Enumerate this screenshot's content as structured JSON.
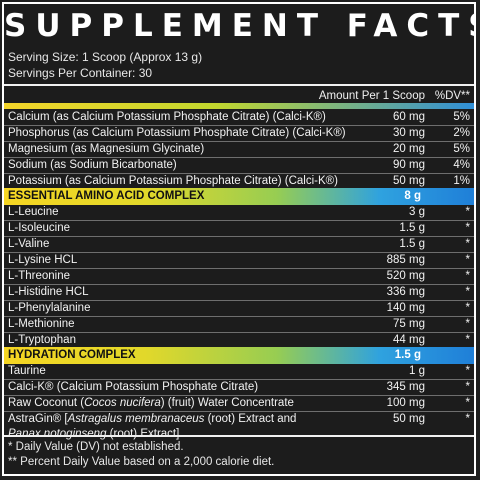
{
  "title": "SUPPLEMENT FACTS",
  "serving_size": "Serving Size: 1 Scoop (Approx 13 g)",
  "servings_per_container": "Servings Per Container: 30",
  "header": {
    "amount": "Amount Per 1 Scoop",
    "dv": "%DV**"
  },
  "minerals": [
    {
      "name": "Calcium (as Calcium Potassium Phosphate Citrate) (Calci-K®)",
      "amount": "60 mg",
      "dv": "5%"
    },
    {
      "name": "Phosphorus (as Calcium Potassium Phosphate Citrate) (Calci-K®)",
      "amount": "30 mg",
      "dv": "2%"
    },
    {
      "name": "Magnesium (as Magnesium Glycinate)",
      "amount": "20 mg",
      "dv": "5%"
    },
    {
      "name": "Sodium (as Sodium Bicarbonate)",
      "amount": "90 mg",
      "dv": "4%"
    },
    {
      "name": "Potassium (as Calcium Potassium Phosphate Citrate) (Calci-K®)",
      "amount": "50 mg",
      "dv": "1%"
    }
  ],
  "eaa": {
    "title": "ESSENTIAL AMINO ACID COMPLEX",
    "amount": "8 g",
    "items": [
      {
        "name": "L-Leucine",
        "amount": "3 g",
        "dv": "*"
      },
      {
        "name": "L-Isoleucine",
        "amount": "1.5 g",
        "dv": "*"
      },
      {
        "name": "L-Valine",
        "amount": "1.5 g",
        "dv": "*"
      },
      {
        "name": "L-Lysine HCL",
        "amount": "885 mg",
        "dv": "*"
      },
      {
        "name": "L-Threonine",
        "amount": "520 mg",
        "dv": "*"
      },
      {
        "name": "L-Histidine HCL",
        "amount": "336 mg",
        "dv": "*"
      },
      {
        "name": "L-Phenylalanine",
        "amount": "140 mg",
        "dv": "*"
      },
      {
        "name": "L-Methionine",
        "amount": "75 mg",
        "dv": "*"
      },
      {
        "name": "L-Tryptophan",
        "amount": "44 mg",
        "dv": "*"
      }
    ]
  },
  "hydration": {
    "title": "HYDRATION COMPLEX",
    "amount": "1.5 g",
    "items": [
      {
        "name": "Taurine",
        "amount": "1 g",
        "dv": "*"
      },
      {
        "name": "Calci-K® (Calcium Potassium Phosphate Citrate)",
        "amount": "345 mg",
        "dv": "*"
      },
      {
        "name_pre": "Raw Coconut (",
        "name_italic": "Cocos nucifera",
        "name_post": ") (fruit) Water Concentrate",
        "amount": "100 mg",
        "dv": "*"
      },
      {
        "name_pre": "AstraGin® [",
        "name_italic": "Astragalus membranaceus",
        "name_post": " (root) Extract and",
        "name_italic2": "Panax notoginseng",
        "name_post2": " (root) Extract]",
        "amount": "50 mg",
        "dv": "*"
      }
    ]
  },
  "footnotes": [
    "* Daily Value (DV) not established.",
    "** Percent Daily Value based on a 2,000 calorie diet."
  ]
}
